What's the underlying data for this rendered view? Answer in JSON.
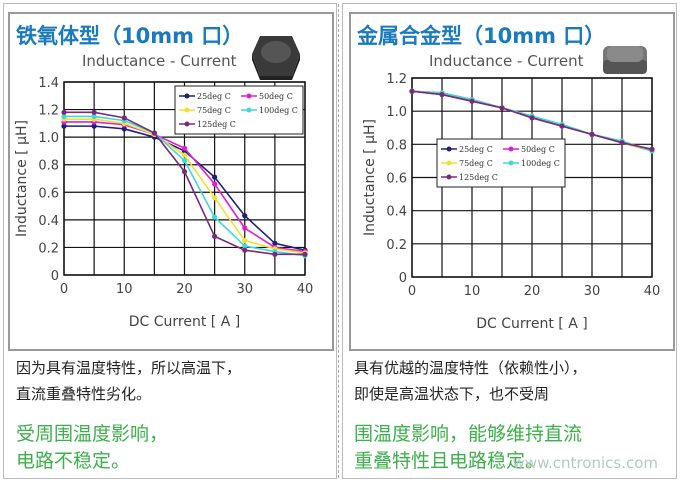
{
  "colors": {
    "title": "#1a7abf",
    "good": "#3cb04a"
  },
  "legend_colors": [
    "#1f1f7a",
    "#e020d0",
    "#f0e030",
    "#40d8d8",
    "#7a2a7a"
  ],
  "left": {
    "title": "铁氧体型（10mm 口）",
    "desc": [
      "因为具有温度特性，所以高温下，",
      "直流重叠特性劣化。"
    ],
    "highlight": [
      "受周围温度影响，",
      "电路不稳定。"
    ]
  },
  "right": {
    "title": "金属合金型（10mm 口）",
    "desc": [
      "具有优越的温度特性（依赖性小），",
      "即使是高温状态下，也不受周"
    ],
    "highlight": [
      "围温度影响，能够维持直流",
      "重叠特性且电路稳定。"
    ]
  },
  "watermark": "www.cntronics.com",
  "chart_data": [
    {
      "type": "line",
      "title": "Inductance - Current",
      "xlabel": "DC Current [ A ]",
      "ylabel": "Inductance [ μH]",
      "xlim": [
        0,
        40
      ],
      "ylim": [
        0,
        1.4
      ],
      "xticks": [
        "0",
        "10",
        "20",
        "30",
        "40"
      ],
      "yticks": [
        "0",
        "0.2",
        "0.4",
        "0.6",
        "0.8",
        "1.0",
        "1.2",
        "1.4"
      ],
      "grid": true,
      "legend": "top-right",
      "x": [
        0,
        5,
        10,
        15,
        20,
        25,
        30,
        35,
        40
      ],
      "series": [
        {
          "name": "25deg C",
          "values": [
            1.08,
            1.08,
            1.06,
            1.0,
            0.9,
            0.71,
            0.43,
            0.23,
            0.18
          ]
        },
        {
          "name": "50deg C",
          "values": [
            1.11,
            1.11,
            1.09,
            1.02,
            0.92,
            0.66,
            0.34,
            0.2,
            0.17
          ]
        },
        {
          "name": "75deg C",
          "values": [
            1.13,
            1.13,
            1.1,
            1.02,
            0.87,
            0.56,
            0.25,
            0.19,
            0.16
          ]
        },
        {
          "name": "100deg C",
          "values": [
            1.15,
            1.15,
            1.12,
            1.03,
            0.83,
            0.42,
            0.21,
            0.17,
            0.14
          ]
        },
        {
          "name": "125deg C",
          "values": [
            1.18,
            1.18,
            1.14,
            1.03,
            0.75,
            0.28,
            0.18,
            0.15,
            0.15
          ]
        }
      ]
    },
    {
      "type": "line",
      "title": "Inductance - Current",
      "xlabel": "DC Current [ A ]",
      "ylabel": "Inductance [ μH]",
      "xlim": [
        0,
        40
      ],
      "ylim": [
        0,
        1.2
      ],
      "xticks": [
        "0",
        "10",
        "20",
        "30",
        "40"
      ],
      "yticks": [
        "0",
        "0.2",
        "0.4",
        "0.6",
        "0.8",
        "1.0",
        "1.2"
      ],
      "grid": true,
      "legend": "center-left",
      "x": [
        0,
        5,
        10,
        15,
        20,
        25,
        30,
        35,
        40
      ],
      "series": [
        {
          "name": "25deg C",
          "values": [
            1.12,
            1.11,
            1.07,
            1.02,
            0.97,
            0.91,
            0.86,
            0.81,
            0.76
          ]
        },
        {
          "name": "50deg C",
          "values": [
            1.12,
            1.1,
            1.06,
            1.02,
            0.96,
            0.91,
            0.86,
            0.81,
            0.77
          ]
        },
        {
          "name": "75deg C",
          "values": [
            1.12,
            1.11,
            1.07,
            1.02,
            0.97,
            0.91,
            0.86,
            0.81,
            0.76
          ]
        },
        {
          "name": "100deg C",
          "values": [
            1.12,
            1.11,
            1.07,
            1.02,
            0.97,
            0.92,
            0.86,
            0.82,
            0.76
          ]
        },
        {
          "name": "125deg C",
          "values": [
            1.12,
            1.1,
            1.06,
            1.02,
            0.96,
            0.91,
            0.86,
            0.81,
            0.77
          ]
        }
      ]
    }
  ]
}
